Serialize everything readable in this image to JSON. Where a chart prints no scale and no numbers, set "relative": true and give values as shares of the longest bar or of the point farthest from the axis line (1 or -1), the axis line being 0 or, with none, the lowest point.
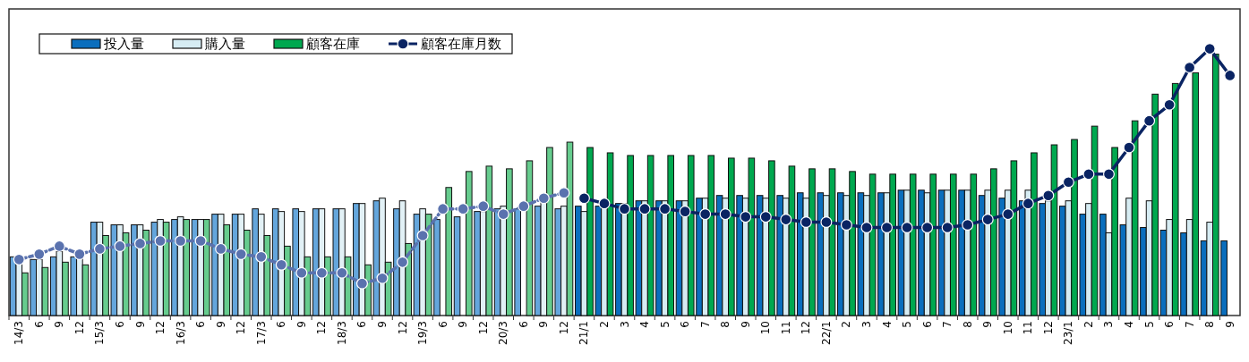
{
  "chart_data": {
    "type": "bar",
    "relative": true,
    "legend": "top left",
    "marker": "circle",
    "categories": [
      "14/3",
      "6",
      "9",
      "12",
      "15/3",
      "6",
      "9",
      "12",
      "16/3",
      "6",
      "9",
      "12",
      "17/3",
      "6",
      "9",
      "12",
      "18/3",
      "6",
      "9",
      "12",
      "19/3",
      "6",
      "9",
      "12",
      "20/3",
      "6",
      "9",
      "12",
      "21/1",
      "2",
      "3",
      "4",
      "5",
      "6",
      "7",
      "8",
      "9",
      "10",
      "11",
      "12",
      "22/1",
      "2",
      "3",
      "4",
      "5",
      "6",
      "7",
      "8",
      "9",
      "10",
      "11",
      "12",
      "23/1",
      "2",
      "3",
      "4",
      "5",
      "6",
      "7",
      "8",
      "9"
    ],
    "series": [
      {
        "name": "投入量",
        "color": "#0a6ebd",
        "colors": [
          "#64a6dc",
          "#64a6dc",
          "#64a6dc",
          "#64a6dc",
          "#64a6dc",
          "#64a6dc",
          "#64a6dc",
          "#64a6dc",
          "#64a6dc",
          "#64a6dc",
          "#64a6dc",
          "#64a6dc",
          "#64a6dc",
          "#64a6dc",
          "#64a6dc",
          "#64a6dc",
          "#64a6dc",
          "#64a6dc",
          "#64a6dc",
          "#64a6dc",
          "#64a6dc",
          "#64a6dc",
          "#64a6dc",
          "#64a6dc",
          "#64a6dc",
          "#64a6dc",
          "#64a6dc",
          "#64a6dc",
          "#0a6ebd",
          "#0a6ebd",
          "#0a6ebd",
          "#0a6ebd",
          "#0a6ebd",
          "#0a6ebd",
          "#0a6ebd",
          "#0a6ebd",
          "#0a6ebd",
          "#0a6ebd",
          "#0a6ebd",
          "#0a6ebd",
          "#0a6ebd",
          "#0a6ebd",
          "#0a6ebd",
          "#0a6ebd",
          "#0a6ebd",
          "#0a6ebd",
          "#0a6ebd",
          "#0a6ebd",
          "#0a6ebd",
          "#0a6ebd",
          "#0a6ebd",
          "#0a6ebd",
          "#0a6ebd",
          "#0a6ebd",
          "#0a6ebd",
          "#0a6ebd",
          "#0a6ebd",
          "#0a6ebd",
          "#0a6ebd",
          "#0a6ebd",
          "#0a6ebd"
        ],
        "values": [
          0.22,
          0.21,
          0.22,
          0.22,
          0.35,
          0.34,
          0.34,
          0.35,
          0.36,
          0.36,
          0.38,
          0.38,
          0.4,
          0.4,
          0.4,
          0.4,
          0.4,
          0.42,
          0.43,
          0.4,
          0.38,
          0.36,
          0.37,
          0.39,
          0.4,
          0.4,
          0.41,
          0.4,
          0.41,
          0.41,
          0.42,
          0.43,
          0.43,
          0.43,
          0.44,
          0.45,
          0.45,
          0.45,
          0.45,
          0.46,
          0.46,
          0.46,
          0.46,
          0.46,
          0.47,
          0.47,
          0.47,
          0.47,
          0.45,
          0.44,
          0.43,
          0.42,
          0.41,
          0.38,
          0.38,
          0.34,
          0.33,
          0.32,
          0.31,
          0.28,
          0.28
        ]
      },
      {
        "name": "購入量",
        "color": "#d6ecf3",
        "colors": [
          "#e2f1f6",
          "#e2f1f6",
          "#e2f1f6",
          "#e2f1f6",
          "#e2f1f6",
          "#e2f1f6",
          "#e2f1f6",
          "#e2f1f6",
          "#e2f1f6",
          "#e2f1f6",
          "#e2f1f6",
          "#e2f1f6",
          "#e2f1f6",
          "#e2f1f6",
          "#e2f1f6",
          "#e2f1f6",
          "#e2f1f6",
          "#e2f1f6",
          "#e2f1f6",
          "#e2f1f6",
          "#e2f1f6",
          "#e2f1f6",
          "#e2f1f6",
          "#e2f1f6",
          "#e2f1f6",
          "#e2f1f6",
          "#e2f1f6",
          "#e2f1f6",
          "#d6ecf3",
          "#d6ecf3",
          "#d6ecf3",
          "#d6ecf3",
          "#d6ecf3",
          "#d6ecf3",
          "#d6ecf3",
          "#d6ecf3",
          "#d6ecf3",
          "#d6ecf3",
          "#d6ecf3",
          "#d6ecf3",
          "#d6ecf3",
          "#d6ecf3",
          "#d6ecf3",
          "#d6ecf3",
          "#d6ecf3",
          "#d6ecf3",
          "#d6ecf3",
          "#d6ecf3",
          "#d6ecf3",
          "#d6ecf3",
          "#d6ecf3",
          "#d6ecf3",
          "#d6ecf3",
          "#d6ecf3",
          "#d6ecf3",
          "#d6ecf3",
          "#d6ecf3",
          "#d6ecf3",
          "#d6ecf3",
          "#d6ecf3",
          "#d6ecf3"
        ],
        "values": [
          0.2,
          0.21,
          0.24,
          0.22,
          0.35,
          0.34,
          0.34,
          0.36,
          0.37,
          0.36,
          0.38,
          0.38,
          0.38,
          0.39,
          0.39,
          0.4,
          0.4,
          0.42,
          0.44,
          0.43,
          0.4,
          null,
          null,
          0.39,
          0.41,
          null,
          0.43,
          0.41,
          0.39,
          0.41,
          0.42,
          0.43,
          0.43,
          0.43,
          0.44,
          0.44,
          0.44,
          0.44,
          0.44,
          0.44,
          0.45,
          0.45,
          0.45,
          0.46,
          0.47,
          0.46,
          0.47,
          0.47,
          0.47,
          0.47,
          0.47,
          0.43,
          0.43,
          0.42,
          0.31,
          0.44,
          0.43,
          0.36,
          0.36,
          0.35,
          null
        ]
      },
      {
        "name": "顧客在庫",
        "color": "#00a84f",
        "colors": [
          "#66cc8e",
          "#66cc8e",
          "#66cc8e",
          "#66cc8e",
          "#66cc8e",
          "#66cc8e",
          "#66cc8e",
          "#66cc8e",
          "#66cc8e",
          "#66cc8e",
          "#66cc8e",
          "#66cc8e",
          "#66cc8e",
          "#66cc8e",
          "#66cc8e",
          "#66cc8e",
          "#66cc8e",
          "#66cc8e",
          "#66cc8e",
          "#66cc8e",
          "#66cc8e",
          "#66cc8e",
          "#66cc8e",
          "#66cc8e",
          "#66cc8e",
          "#66cc8e",
          "#66cc8e",
          "#66cc8e",
          "#00a84f",
          "#00a84f",
          "#00a84f",
          "#00a84f",
          "#00a84f",
          "#00a84f",
          "#00a84f",
          "#00a84f",
          "#00a84f",
          "#00a84f",
          "#00a84f",
          "#00a84f",
          "#00a84f",
          "#00a84f",
          "#00a84f",
          "#00a84f",
          "#00a84f",
          "#00a84f",
          "#00a84f",
          "#00a84f",
          "#00a84f",
          "#00a84f",
          "#00a84f",
          "#00a84f",
          "#00a84f",
          "#00a84f",
          "#00a84f",
          "#00a84f",
          "#00a84f",
          "#00a84f",
          "#00a84f",
          "#00a84f",
          "#00a84f"
        ],
        "values": [
          0.16,
          0.18,
          0.2,
          0.19,
          0.3,
          0.31,
          0.32,
          0.35,
          0.36,
          0.36,
          0.34,
          0.32,
          0.3,
          0.26,
          0.22,
          0.22,
          0.22,
          0.19,
          0.2,
          0.27,
          0.38,
          0.48,
          0.54,
          0.56,
          0.55,
          0.58,
          0.63,
          0.65,
          0.63,
          0.61,
          0.6,
          0.6,
          0.6,
          0.6,
          0.6,
          0.59,
          0.59,
          0.58,
          0.56,
          0.55,
          0.55,
          0.54,
          0.53,
          0.53,
          0.53,
          0.53,
          0.53,
          0.53,
          0.55,
          0.58,
          0.61,
          0.64,
          0.66,
          0.71,
          0.63,
          0.73,
          0.83,
          0.87,
          0.91,
          0.98,
          null
        ]
      },
      {
        "type": "line",
        "color": "#5a72ae",
        "line_style": "dashed",
        "values": [
          0.21,
          0.23,
          0.26,
          0.23,
          0.25,
          0.26,
          0.27,
          0.28,
          0.28,
          0.28,
          0.25,
          0.23,
          0.22,
          0.19,
          0.16,
          0.16,
          0.16,
          0.12,
          0.14,
          0.2,
          0.3,
          0.4,
          0.4,
          0.41,
          0.38,
          0.41,
          0.44,
          0.46,
          null,
          null,
          null,
          null,
          null,
          null,
          null,
          null,
          null,
          null,
          null,
          null,
          null,
          null,
          null,
          null,
          null,
          null,
          null,
          null,
          null,
          null,
          null,
          null,
          null,
          null,
          null,
          null,
          null,
          null,
          null,
          null,
          null
        ]
      },
      {
        "type": "line",
        "name": "顧客在庫月数",
        "color": "#0a2463",
        "line_style": "solid",
        "values": [
          null,
          null,
          null,
          null,
          null,
          null,
          null,
          null,
          null,
          null,
          null,
          null,
          null,
          null,
          null,
          null,
          null,
          null,
          null,
          null,
          null,
          null,
          null,
          null,
          null,
          null,
          null,
          null,
          0.44,
          0.42,
          0.4,
          0.4,
          0.4,
          0.39,
          0.38,
          0.38,
          0.37,
          0.37,
          0.36,
          0.35,
          0.35,
          0.34,
          0.33,
          0.33,
          0.33,
          0.33,
          0.33,
          0.34,
          0.36,
          0.38,
          0.42,
          0.45,
          0.5,
          0.53,
          0.53,
          0.63,
          0.73,
          0.79,
          0.93,
          1,
          0.9
        ]
      }
    ]
  }
}
